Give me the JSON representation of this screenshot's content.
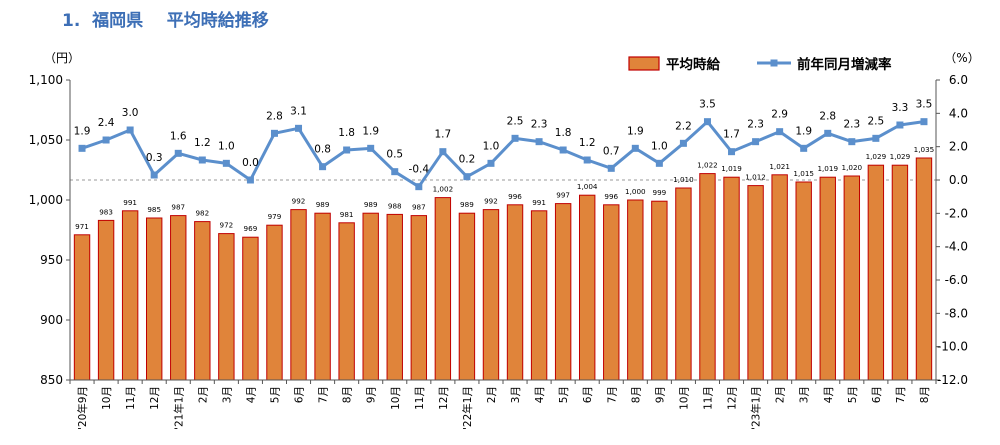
{
  "heading": "1.  福岡県    平均時給推移",
  "chart_data": {
    "type": "bar+line",
    "title": "1. 福岡県 平均時給推移",
    "left_axis": {
      "unit_label": "（円）",
      "range": [
        850,
        1100
      ],
      "ticks": [
        "850",
        "900",
        "950",
        "1,000",
        "1,050",
        "1,100"
      ]
    },
    "right_axis": {
      "unit_label": "（%）",
      "range": [
        -12,
        6
      ],
      "ticks": [
        "-12.0",
        "-10.0",
        "-8.0",
        "-6.0",
        "-4.0",
        "-2.0",
        "0.0",
        "2.0",
        "4.0",
        "6.0"
      ]
    },
    "categories": [
      "'20年9月",
      "10月",
      "11月",
      "12月",
      "'21年1月",
      "2月",
      "3月",
      "4月",
      "5月",
      "6月",
      "7月",
      "8月",
      "9月",
      "10月",
      "11月",
      "12月",
      "'22年1月",
      "2月",
      "3月",
      "4月",
      "5月",
      "6月",
      "7月",
      "8月",
      "9月",
      "10月",
      "11月",
      "12月",
      "'23年1月",
      "2月",
      "3月",
      "4月",
      "5月",
      "6月",
      "7月",
      "8月"
    ],
    "series": [
      {
        "name": "平均時給",
        "type": "bar",
        "axis": "left",
        "color": "#e0843a",
        "border": "#c00000",
        "values": [
          971,
          983,
          991,
          985,
          987,
          982,
          972,
          969,
          979,
          992,
          989,
          981,
          989,
          988,
          987,
          1002,
          989,
          992,
          996,
          991,
          997,
          1004,
          996,
          1000,
          999,
          1010,
          1022,
          1019,
          1012,
          1021,
          1015,
          1019,
          1020,
          1029,
          1029,
          1035
        ],
        "labels": [
          "971",
          "983",
          "991",
          "985",
          "987",
          "982",
          "972",
          "969",
          "979",
          "992",
          "989",
          "981",
          "989",
          "988",
          "987",
          "1,002",
          "989",
          "992",
          "996",
          "991",
          "997",
          "1,004",
          "996",
          "1,000",
          "999",
          "1,010",
          "1,022",
          "1,019",
          "1,012",
          "1,021",
          "1,015",
          "1,019",
          "1,020",
          "1,029",
          "1,029",
          "1,035"
        ]
      },
      {
        "name": "前年同月増減率",
        "type": "line",
        "axis": "right",
        "color": "#5b8fcc",
        "values": [
          1.9,
          2.4,
          3.0,
          0.3,
          1.6,
          1.2,
          1.0,
          0.0,
          2.8,
          3.1,
          0.8,
          1.8,
          1.9,
          0.5,
          -0.4,
          1.7,
          0.2,
          1.0,
          2.5,
          2.3,
          1.8,
          1.2,
          0.7,
          1.9,
          1.0,
          2.2,
          3.5,
          1.7,
          2.3,
          2.9,
          1.9,
          2.8,
          2.3,
          2.5,
          3.3,
          3.5
        ],
        "labels": [
          "1.9",
          "2.4",
          "3.0",
          "0.3",
          "1.6",
          "1.2",
          "1.0",
          "0.0",
          "2.8",
          "3.1",
          "0.8",
          "1.8",
          "1.9",
          "0.5",
          "-0.4",
          "1.7",
          "0.2",
          "1.0",
          "2.5",
          "2.3",
          "1.8",
          "1.2",
          "0.7",
          "1.9",
          "1.0",
          "2.2",
          "3.5",
          "1.7",
          "2.3",
          "2.9",
          "1.9",
          "2.8",
          "2.3",
          "2.5",
          "3.3",
          "3.5"
        ]
      }
    ],
    "legend": {
      "position": "top-right",
      "entries": [
        "平均時給",
        "前年同月増減率"
      ]
    },
    "zero_line": "dashed"
  }
}
